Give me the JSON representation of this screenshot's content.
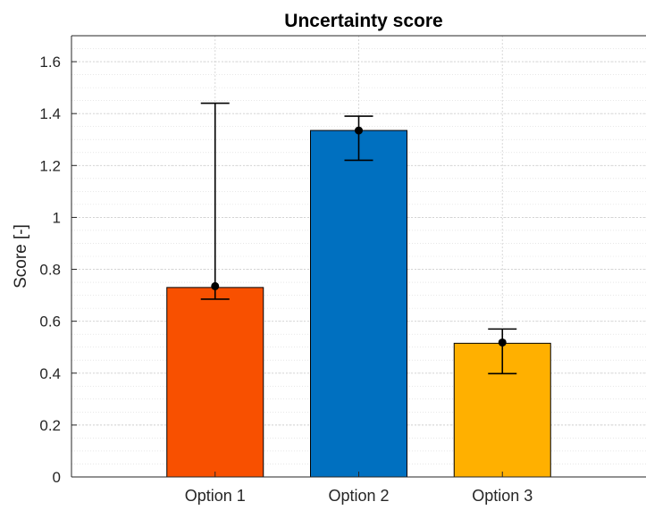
{
  "chart_data": {
    "type": "bar",
    "title": "Uncertainty score",
    "ylabel": "Score [-]",
    "xlabel": "",
    "categories": [
      "Option 1",
      "Option 2",
      "Option 3"
    ],
    "values": [
      0.73,
      1.335,
      0.515
    ],
    "point_markers": [
      0.735,
      1.335,
      0.518
    ],
    "error_low": [
      0.685,
      1.22,
      0.398
    ],
    "error_high": [
      1.44,
      1.39,
      0.57
    ],
    "bar_colors": [
      "#F85000",
      "#0070C0",
      "#FFB000"
    ],
    "ylim": [
      0,
      1.7
    ],
    "yticks": [
      0,
      0.2,
      0.4,
      0.6,
      0.8,
      1,
      1.2,
      1.4,
      1.6
    ],
    "ytick_labels": [
      "0",
      "0.2",
      "0.4",
      "0.6",
      "0.8",
      "1",
      "1.2",
      "1.4",
      "1.6"
    ],
    "grid": true,
    "minor_grid": true,
    "legend": "none"
  }
}
